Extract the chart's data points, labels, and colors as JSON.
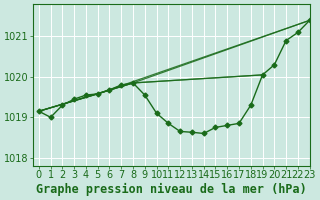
{
  "xlabel": "Graphe pression niveau de la mer (hPa)",
  "ylabel": "",
  "background_color": "#cce8e0",
  "grid_color": "#b8d8d0",
  "line_color": "#1a6b1a",
  "xlim": [
    -0.5,
    23
  ],
  "ylim": [
    1017.8,
    1021.8
  ],
  "yticks": [
    1018,
    1019,
    1020,
    1021
  ],
  "xticks": [
    0,
    1,
    2,
    3,
    4,
    5,
    6,
    7,
    8,
    9,
    10,
    11,
    12,
    13,
    14,
    15,
    16,
    17,
    18,
    19,
    20,
    21,
    22,
    23
  ],
  "series": [
    {
      "x": [
        0,
        1,
        2,
        3,
        4,
        5,
        6,
        7,
        8,
        9,
        10,
        11,
        12,
        13,
        14,
        15,
        16,
        17,
        18,
        19,
        20,
        21,
        22,
        23
      ],
      "y": [
        1019.15,
        1019.0,
        1019.3,
        1019.45,
        1019.55,
        1019.58,
        1019.68,
        1019.8,
        1019.85,
        1019.55,
        1019.1,
        1018.85,
        1018.65,
        1018.63,
        1018.6,
        1018.75,
        1018.8,
        1018.85,
        1019.3,
        1020.05,
        1020.3,
        1020.9,
        1021.1,
        1021.4
      ],
      "marker": true,
      "linewidth": 1.0
    },
    {
      "x": [
        0,
        8,
        19
      ],
      "y": [
        1019.15,
        1019.85,
        1020.05
      ],
      "marker": false,
      "linewidth": 0.9
    },
    {
      "x": [
        0,
        8,
        23
      ],
      "y": [
        1019.15,
        1019.85,
        1021.4
      ],
      "marker": false,
      "linewidth": 0.9
    },
    {
      "x": [
        0,
        5,
        8,
        19
      ],
      "y": [
        1019.15,
        1019.58,
        1019.85,
        1020.05
      ],
      "marker": false,
      "linewidth": 0.9
    },
    {
      "x": [
        0,
        5,
        23
      ],
      "y": [
        1019.15,
        1019.58,
        1021.4
      ],
      "marker": false,
      "linewidth": 0.9
    }
  ],
  "font_color": "#1a6b1a",
  "font_size_xlabel": 8.5,
  "font_size_tick": 7.0
}
